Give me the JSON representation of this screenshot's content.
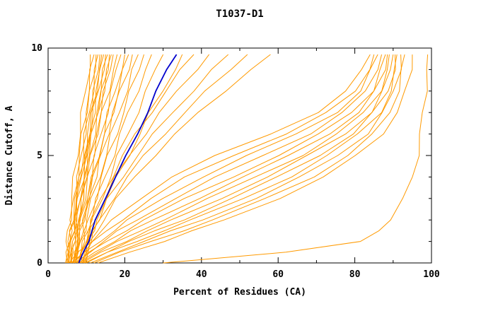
{
  "chart_data": {
    "type": "line",
    "title": "T1037-D1",
    "colors": {
      "orange": "#ff9a00",
      "blue": "#0000cd",
      "axis": "#000000",
      "background": "#ffffff"
    },
    "x_axis": {
      "label": "Percent of Residues (CA)",
      "min": 0,
      "max": 100,
      "major_ticks": [
        0,
        20,
        40,
        60,
        80,
        100
      ],
      "minor_ticks": [
        10,
        30,
        50,
        70,
        90
      ]
    },
    "y_axis": {
      "label": "Distance Cutoff, A",
      "min": 0,
      "max": 10,
      "major_ticks": [
        0,
        5,
        10
      ],
      "minor_ticks": [
        1,
        2,
        3,
        4,
        6,
        7,
        8,
        9
      ]
    },
    "legend": "none",
    "grid": false,
    "y_grid": [
      0,
      0.5,
      1,
      1.5,
      2,
      3,
      4,
      5,
      6,
      7,
      8,
      9,
      9.7
    ],
    "series": [
      {
        "color": "orange",
        "x": [
          4.5,
          4.7,
          5,
          5.3,
          5.6,
          6.2,
          6.9,
          7.5,
          8.2,
          9,
          9.7,
          10.5,
          11
        ]
      },
      {
        "color": "orange",
        "x": [
          5,
          5.2,
          5.5,
          5.8,
          6.1,
          6.8,
          7.5,
          8.3,
          9,
          9.8,
          10.6,
          11.4,
          12
        ]
      },
      {
        "color": "orange",
        "x": [
          5.3,
          5.5,
          5.8,
          6.1,
          6.5,
          7.2,
          7.9,
          8.7,
          9.4,
          10.2,
          11.1,
          11.9,
          12.5
        ]
      },
      {
        "color": "orange",
        "x": [
          5.5,
          5.8,
          6,
          6.4,
          6.7,
          7.4,
          8.2,
          9,
          9.8,
          10.7,
          11.5,
          12.4,
          13
        ]
      },
      {
        "color": "orange",
        "x": [
          7.2,
          7.4,
          7.7,
          7.9,
          8.2,
          8.8,
          9.5,
          10.1,
          10.8,
          11.5,
          12.2,
          13,
          13.5
        ]
      },
      {
        "color": "orange",
        "x": [
          5.8,
          6.1,
          6.4,
          6.8,
          7.1,
          7.9,
          8.8,
          9.6,
          10.5,
          11.4,
          12.4,
          13.3,
          14
        ]
      },
      {
        "color": "orange",
        "x": [
          6,
          6.3,
          6.6,
          7,
          7.4,
          8.2,
          9.1,
          10,
          10.9,
          11.8,
          12.8,
          13.8,
          14.5
        ]
      },
      {
        "color": "orange",
        "x": [
          4.8,
          5.1,
          5.5,
          6,
          6.5,
          7.4,
          8.5,
          9.6,
          10.7,
          11.8,
          13,
          14.2,
          15
        ]
      },
      {
        "color": "orange",
        "x": [
          6.2,
          6.5,
          6.9,
          7.3,
          7.7,
          8.6,
          9.6,
          10.5,
          11.6,
          12.6,
          13.7,
          14.7,
          15.5
        ]
      },
      {
        "color": "orange",
        "x": [
          6.4,
          6.7,
          7.1,
          7.5,
          8,
          8.9,
          9.9,
          10.9,
          11.9,
          13,
          14.1,
          15.2,
          16
        ]
      },
      {
        "color": "orange",
        "x": [
          5.2,
          5.6,
          6,
          6.5,
          7,
          8.1,
          9.3,
          10.5,
          11.7,
          13,
          14.3,
          15.6,
          16.5
        ]
      },
      {
        "color": "orange",
        "x": [
          6.6,
          7,
          7.4,
          7.8,
          8.3,
          9.3,
          10.4,
          11.4,
          12.6,
          13.7,
          14.9,
          16.1,
          17
        ]
      },
      {
        "color": "orange",
        "x": [
          6,
          6.4,
          6.9,
          7.4,
          8,
          9.1,
          10.3,
          11.6,
          12.9,
          14.2,
          15.6,
          17,
          18
        ]
      },
      {
        "color": "orange",
        "x": [
          6.8,
          7.2,
          7.7,
          8.2,
          8.8,
          10,
          11.2,
          12.5,
          13.8,
          15.2,
          16.6,
          18,
          19
        ]
      },
      {
        "color": "orange",
        "x": [
          7,
          7.4,
          7.9,
          8.5,
          9.1,
          10.4,
          11.7,
          13.1,
          14.5,
          15.9,
          17.4,
          18.9,
          20
        ]
      },
      {
        "color": "orange",
        "x": [
          7.2,
          7.7,
          8.2,
          8.8,
          9.4,
          10.8,
          12.2,
          13.6,
          15.1,
          16.7,
          18.3,
          19.9,
          21
        ]
      },
      {
        "color": "orange",
        "x": [
          6.5,
          7,
          7.6,
          8.3,
          9,
          10.5,
          12.1,
          13.7,
          15.4,
          17.1,
          18.9,
          20.7,
          22
        ]
      },
      {
        "color": "orange",
        "x": [
          7.5,
          8,
          8.7,
          9.4,
          10.1,
          11.6,
          13.3,
          15,
          16.7,
          18.5,
          20.3,
          22.2,
          23.5
        ]
      },
      {
        "color": "orange",
        "x": [
          7.8,
          8.4,
          9.1,
          9.8,
          10.6,
          12.3,
          14,
          15.8,
          17.7,
          19.6,
          21.6,
          23.6,
          25
        ]
      },
      {
        "color": "orange",
        "x": [
          8,
          8.6,
          9.4,
          10.2,
          11.1,
          12.9,
          14.9,
          16.9,
          18.9,
          21.1,
          23.2,
          25.4,
          27
        ]
      },
      {
        "color": "orange",
        "x": [
          8.3,
          9,
          9.9,
          10.8,
          11.8,
          13.9,
          16.1,
          18.4,
          20.8,
          23.2,
          25.7,
          28.2,
          30
        ]
      },
      {
        "color": "orange",
        "x": [
          8.6,
          9.5,
          10.5,
          11.7,
          12.9,
          15.4,
          18.1,
          20.9,
          23.8,
          26.7,
          29.8,
          32.8,
          35
        ]
      },
      {
        "color": "orange",
        "x": [
          8.8,
          9.2,
          9.8,
          10.6,
          11.5,
          13.8,
          16.5,
          19.6,
          23,
          26.7,
          30.7,
          34.9,
          38
        ]
      },
      {
        "color": "orange",
        "x": [
          9,
          9.4,
          10.1,
          11,
          12.1,
          14.7,
          17.7,
          21.2,
          25.1,
          29.3,
          33.8,
          38.5,
          42
        ]
      },
      {
        "color": "orange",
        "x": [
          9.3,
          9.8,
          10.5,
          11.6,
          12.8,
          15.8,
          19.3,
          23.2,
          27.7,
          32.4,
          37.6,
          43,
          47
        ]
      },
      {
        "color": "orange",
        "x": [
          9.5,
          10,
          10.9,
          12.1,
          13.5,
          16.8,
          20.8,
          25.2,
          30.2,
          35.6,
          41.4,
          47.5,
          52
        ]
      },
      {
        "color": "orange",
        "x": [
          9.8,
          10.4,
          11.4,
          12.7,
          14.3,
          18.1,
          22.6,
          27.6,
          33.3,
          39.4,
          45.9,
          52.9,
          58
        ]
      },
      {
        "color": "orange",
        "x": [
          5.5,
          8,
          11,
          14,
          17,
          24,
          32,
          44,
          58,
          70,
          78,
          82,
          84
        ]
      },
      {
        "color": "orange",
        "x": [
          6,
          9,
          12,
          15.5,
          19,
          27,
          36,
          48,
          62,
          73,
          80,
          83.5,
          85
        ]
      },
      {
        "color": "orange",
        "x": [
          6.5,
          10,
          13.5,
          17,
          21,
          30,
          40,
          52,
          65,
          75,
          81.5,
          84.5,
          86
        ]
      },
      {
        "color": "orange",
        "x": [
          7,
          10.5,
          14.5,
          18.5,
          23,
          33,
          44,
          56,
          68,
          77,
          83,
          85.5,
          87
        ]
      },
      {
        "color": "orange",
        "x": [
          7.5,
          11,
          15.5,
          20,
          25,
          36,
          48,
          60,
          71,
          79,
          84.5,
          87,
          88
        ]
      },
      {
        "color": "orange",
        "x": [
          8,
          12,
          17,
          22,
          27.5,
          39,
          51,
          63,
          73,
          81,
          85.5,
          87.8,
          88.5
        ]
      },
      {
        "color": "orange",
        "x": [
          8.5,
          13,
          18.5,
          24,
          30,
          42,
          54,
          66,
          75.5,
          82.5,
          86.5,
          88.5,
          89
        ]
      },
      {
        "color": "orange",
        "x": [
          9,
          14,
          20,
          26,
          32.5,
          45,
          57,
          68,
          77.5,
          84,
          87.5,
          89.5,
          90
        ]
      },
      {
        "color": "orange",
        "x": [
          9.5,
          15,
          21.5,
          28,
          35,
          48,
          60,
          70.5,
          79.5,
          85,
          88.5,
          90.2,
          90.5
        ]
      },
      {
        "color": "orange",
        "x": [
          10,
          16,
          23,
          30,
          37.5,
          51,
          63,
          73,
          81,
          86.5,
          89.5,
          90.8,
          91
        ]
      },
      {
        "color": "orange",
        "x": [
          11,
          17.5,
          25,
          32.5,
          40,
          54,
          66,
          75.5,
          83,
          87.5,
          90.3,
          91.6,
          92
        ]
      },
      {
        "color": "orange",
        "x": [
          12,
          19,
          27,
          35,
          43,
          57,
          69,
          78,
          85,
          89,
          91.2,
          92.5,
          93
        ]
      },
      {
        "color": "orange",
        "x": [
          13,
          21,
          30,
          38,
          46,
          60,
          72,
          80.5,
          87,
          91,
          93.5,
          94.7,
          95
        ]
      },
      {
        "color": "orange",
        "x": [
          30,
          62,
          82,
          86,
          89,
          93,
          95,
          96.3,
          97.2,
          97.9,
          98.4,
          98.8,
          99
        ]
      },
      {
        "color": "blue",
        "x": [
          8,
          9.3,
          10.4,
          11.5,
          12.5,
          14.8,
          17.5,
          20.5,
          23.3,
          25.8,
          28.3,
          31,
          33.5
        ]
      }
    ]
  }
}
